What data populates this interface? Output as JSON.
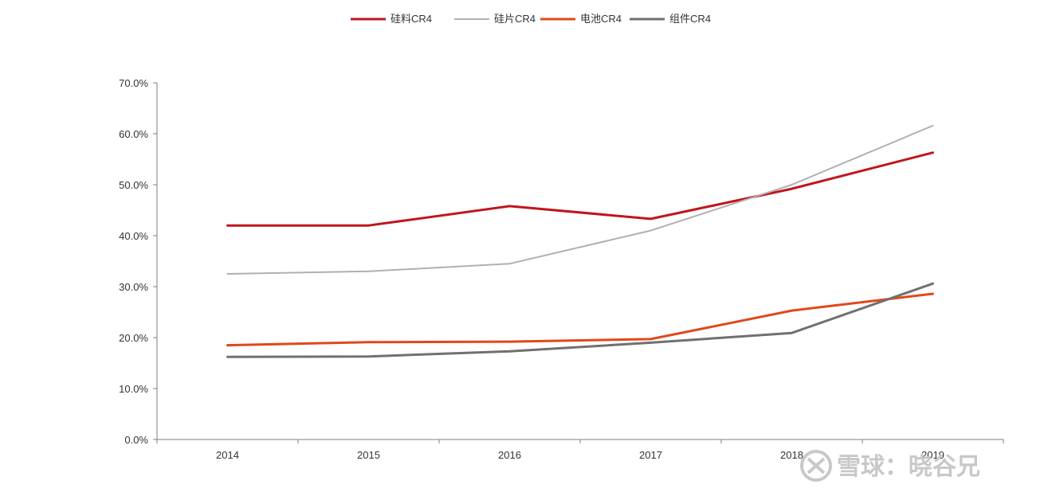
{
  "chart_data": {
    "type": "line",
    "title": "",
    "xlabel": "",
    "ylabel": "",
    "categories": [
      "2014",
      "2015",
      "2016",
      "2017",
      "2018",
      "2019"
    ],
    "ylim": [
      0,
      70
    ],
    "y_ticks": [
      "0.0%",
      "10.0%",
      "20.0%",
      "30.0%",
      "40.0%",
      "50.0%",
      "60.0%",
      "70.0%"
    ],
    "grid": false,
    "legend_position": "top-center",
    "series": [
      {
        "name": "硅料CR4",
        "color": "#c0151d",
        "width": 3,
        "values": [
          42.0,
          42.0,
          45.8,
          43.3,
          49.2,
          56.3
        ]
      },
      {
        "name": "硅片CR4",
        "color": "#b0b0b0",
        "width": 2,
        "values": [
          32.5,
          33.0,
          34.5,
          41.0,
          50.0,
          61.6
        ]
      },
      {
        "name": "电池CR4",
        "color": "#e0481a",
        "width": 3,
        "values": [
          18.5,
          19.1,
          19.2,
          19.7,
          25.3,
          28.6
        ]
      },
      {
        "name": "组件CR4",
        "color": "#707070",
        "width": 3,
        "values": [
          16.2,
          16.3,
          17.3,
          19.0,
          20.9,
          30.6
        ]
      }
    ]
  },
  "watermark": {
    "text": "雪球：晓谷兄"
  }
}
